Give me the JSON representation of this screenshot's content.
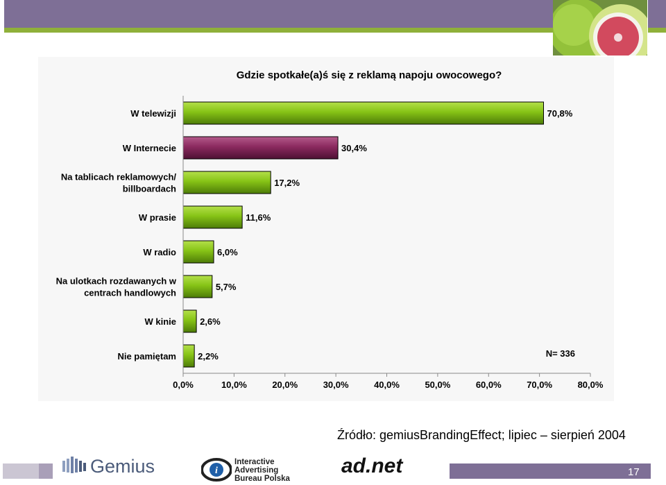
{
  "chart_data": {
    "type": "bar",
    "orientation": "horizontal",
    "title": "Gdzie spotkałe(a)ś się z reklamą napoju owocowego?",
    "categories": [
      [
        "W telewizji"
      ],
      [
        "W Internecie"
      ],
      [
        "Na tablicach reklamowych/",
        "billboardach"
      ],
      [
        "W prasie"
      ],
      [
        "W radio"
      ],
      [
        "Na ulotkach rozdawanych w",
        "centrach handlowych"
      ],
      [
        "W kinie"
      ],
      [
        "Nie pamiętam"
      ]
    ],
    "values": [
      70.8,
      30.4,
      17.2,
      11.6,
      6.0,
      5.7,
      2.6,
      2.2
    ],
    "value_labels": [
      "70,8%",
      "30,4%",
      "17,2%",
      "11,6%",
      "6,0%",
      "5,7%",
      "2,6%",
      "2,2%"
    ],
    "highlight_index": 1,
    "xlim": [
      0,
      80
    ],
    "xticks": [
      "0,0%",
      "10,0%",
      "20,0%",
      "30,0%",
      "40,0%",
      "50,0%",
      "60,0%",
      "70,0%",
      "80,0%"
    ],
    "annotation": "N= 336",
    "grid": false,
    "colors": {
      "bar": "#86c316",
      "highlight": "#8b2a5f",
      "outline": "#000000"
    }
  },
  "source": "Źródło: gemiusBrandingEffect; lipiec – sierpień 2004",
  "logos": {
    "gemius": "Gemius",
    "iab": [
      "Interactive",
      "Advertising",
      "Bureau Polska"
    ],
    "adnet": "ad.net"
  },
  "page_number": "17",
  "colors": {
    "band": "#7e6f96",
    "accent_line": "#8fb03a"
  }
}
